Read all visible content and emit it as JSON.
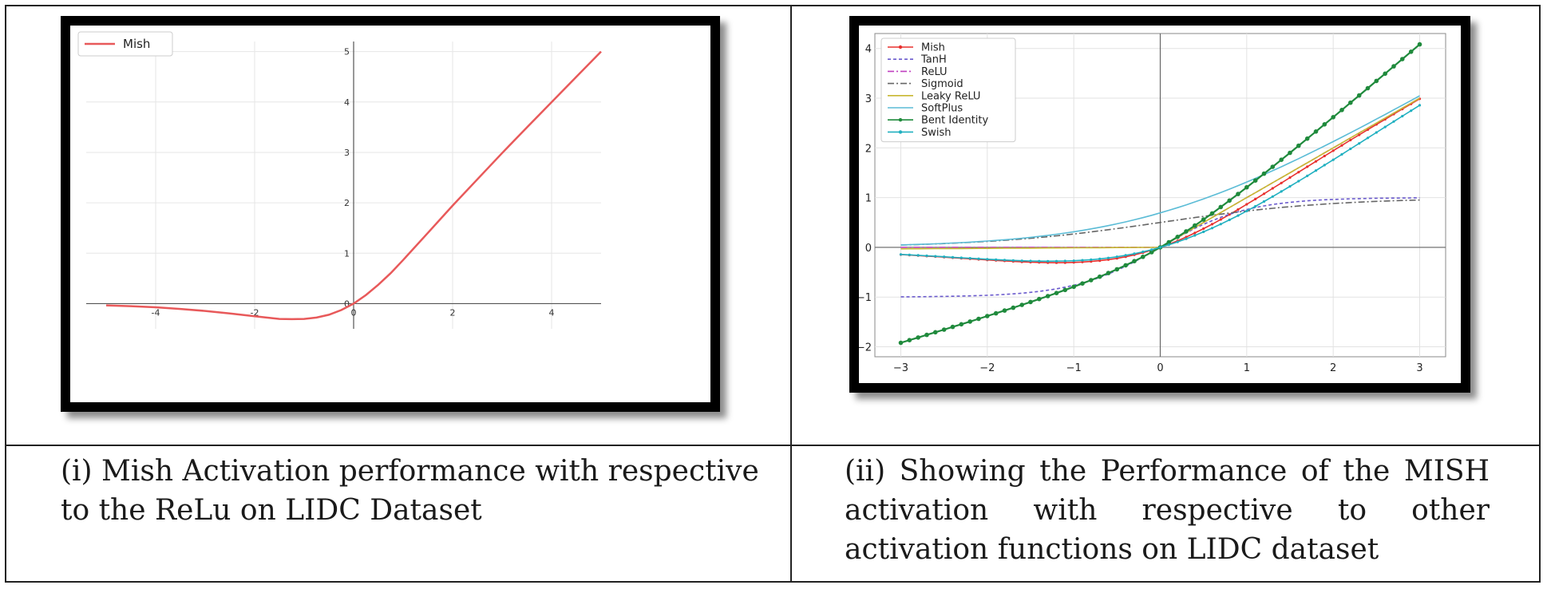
{
  "captions": {
    "left": "(i) Mish Activation performance with respective to the ReLu on LIDC Dataset",
    "right": "(ii) Showing the Performance of the MISH activation with respective to other activation functions on LIDC dataset"
  },
  "chart_data": [
    {
      "type": "line",
      "title": "",
      "xlabel": "",
      "ylabel": "",
      "xlim": [
        -5,
        5
      ],
      "ylim": [
        -0.5,
        5.2
      ],
      "xticks": [
        "-4",
        "-2",
        "0",
        "2",
        "4"
      ],
      "yticks": [
        "0",
        "1",
        "2",
        "3",
        "4",
        "5"
      ],
      "grid": true,
      "legend_position": "top-left",
      "series": [
        {
          "name": "Mish",
          "color": "#e8595a",
          "x": [
            -5,
            -4.5,
            -4,
            -3.5,
            -3,
            -2.5,
            -2,
            -1.5,
            -1.25,
            -1,
            -0.75,
            -0.5,
            -0.25,
            0,
            0.25,
            0.5,
            0.75,
            1,
            1.5,
            2,
            2.5,
            3,
            3.5,
            4,
            4.5,
            5
          ],
          "y": [
            -0.034,
            -0.05,
            -0.073,
            -0.105,
            -0.146,
            -0.196,
            -0.252,
            -0.303,
            -0.309,
            -0.303,
            -0.277,
            -0.222,
            -0.128,
            0,
            0.171,
            0.375,
            0.605,
            0.865,
            1.403,
            1.944,
            2.466,
            2.987,
            3.495,
            3.997,
            4.5,
            5.0
          ]
        }
      ]
    },
    {
      "type": "line",
      "title": "",
      "xlabel": "",
      "ylabel": "",
      "xlim": [
        -3.3,
        3.3
      ],
      "ylim": [
        -2.2,
        4.3
      ],
      "xticks": [
        "-3",
        "-2",
        "-1",
        "0",
        "1",
        "2",
        "3"
      ],
      "yticks": [
        "-2",
        "-1",
        "0",
        "1",
        "2",
        "3",
        "4"
      ],
      "grid": true,
      "legend_position": "top-left",
      "series": [
        {
          "name": "Mish",
          "color": "#e8302e",
          "style": "solid-marker-small"
        },
        {
          "name": "TanH",
          "color": "#6a5acd",
          "style": "dashed"
        },
        {
          "name": "ReLU",
          "color": "#c040c0",
          "style": "dashdot"
        },
        {
          "name": "Sigmoid",
          "color": "#666666",
          "style": "dashdot"
        },
        {
          "name": "Leaky ReLU",
          "color": "#c8b830",
          "style": "solid"
        },
        {
          "name": "SoftPlus",
          "color": "#5bbcd6",
          "style": "solid"
        },
        {
          "name": "Bent Identity",
          "color": "#1f8a3c",
          "style": "solid-marker"
        },
        {
          "name": "Swish",
          "color": "#20b0c0",
          "style": "solid-marker-small"
        }
      ],
      "x_range": [
        -3,
        3
      ],
      "samples": 61
    }
  ]
}
